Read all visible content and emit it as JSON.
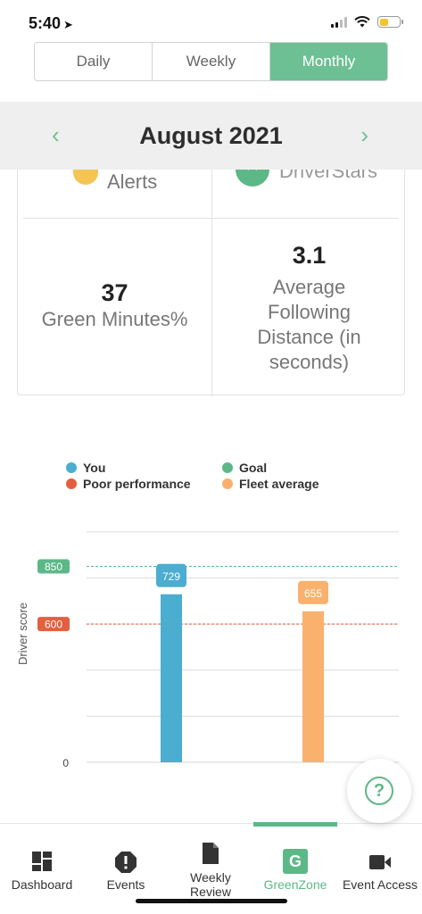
{
  "status_bar": {
    "time": "5:40"
  },
  "segmented": {
    "tabs": [
      {
        "label": "Daily"
      },
      {
        "label": "Weekly"
      },
      {
        "label": "Monthly"
      }
    ],
    "active_index": 2
  },
  "period": {
    "title": "August 2021"
  },
  "stats": {
    "top_left_label": "Alerts",
    "top_right_label": "DriverStars",
    "green_minutes": {
      "value": "37",
      "label": "Green Minutes%"
    },
    "following_distance": {
      "value": "3.1",
      "label_lines": [
        "Average",
        "Following",
        "Distance (in",
        "seconds)"
      ]
    }
  },
  "colors": {
    "accent": "#6dbf94",
    "you": "#4badd0",
    "goal": "#5cb887",
    "poor": "#e2603f",
    "fleet": "#f9b16d"
  },
  "chart_data": {
    "type": "bar",
    "categories": [
      "You",
      "Fleet average"
    ],
    "values": [
      729,
      655
    ],
    "ylabel": "Driver score",
    "ylim": [
      0,
      1100
    ],
    "yticks": [
      0
    ],
    "reference_lines": [
      {
        "name": "Goal",
        "value": 850
      },
      {
        "name": "Poor performance",
        "value": 600
      }
    ],
    "legend": [
      {
        "name": "You",
        "color": "#4badd0"
      },
      {
        "name": "Goal",
        "color": "#5cb887"
      },
      {
        "name": "Poor performance",
        "color": "#e2603f"
      },
      {
        "name": "Fleet average",
        "color": "#f9b16d"
      }
    ],
    "grid": true,
    "legend_position": "top"
  },
  "tabbar": {
    "items": [
      {
        "label": "Dashboard",
        "icon": "dashboard-icon"
      },
      {
        "label": "Events",
        "icon": "alert-octagon-icon"
      },
      {
        "label": "Weekly Review",
        "icon": "document-icon"
      },
      {
        "label": "GreenZone",
        "icon": "greenzone-icon"
      },
      {
        "label": "Event Access",
        "icon": "video-camera-icon"
      }
    ],
    "greenzone_letter": "G",
    "active_index": 3
  },
  "help": {
    "glyph": "?"
  }
}
